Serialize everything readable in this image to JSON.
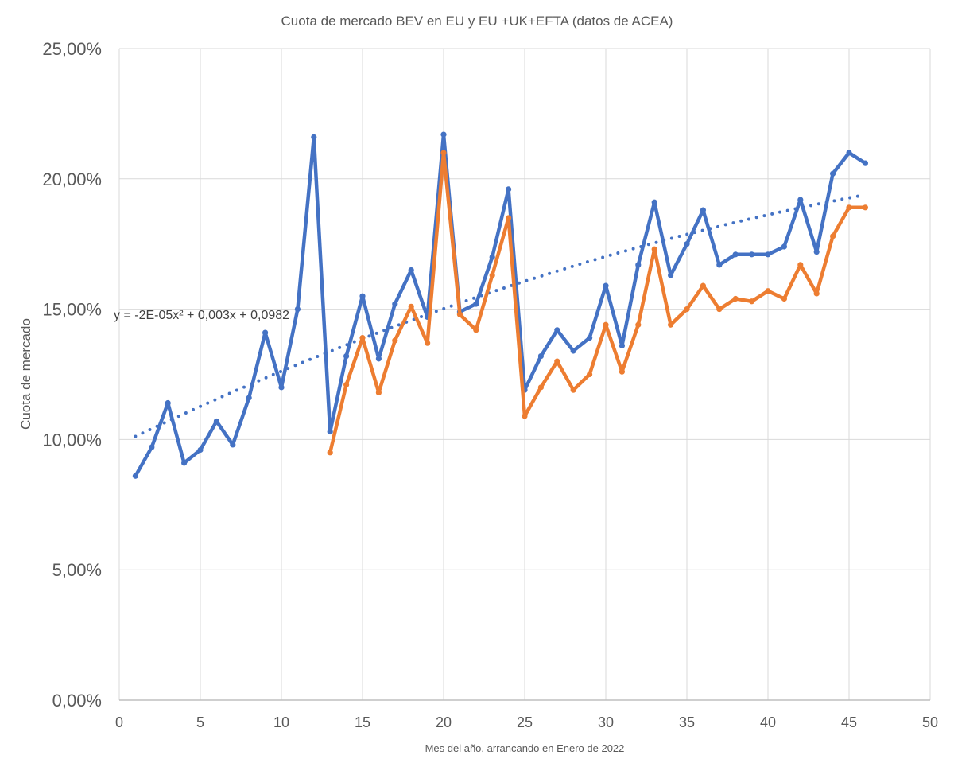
{
  "chart_data": {
    "type": "line",
    "title": "Cuota de mercado BEV en EU y EU +UK+EFTA (datos de ACEA)",
    "xlabel": "Mes del año, arrancando en Enero de 2022",
    "ylabel": "Cuota de mercado",
    "xlim": [
      0,
      50
    ],
    "ylim": [
      0,
      0.25
    ],
    "x_ticks": [
      0,
      5,
      10,
      15,
      20,
      25,
      30,
      35,
      40,
      45,
      50
    ],
    "x_tick_labels": [
      "0",
      "5",
      "10",
      "15",
      "20",
      "25",
      "30",
      "35",
      "40",
      "45",
      "50"
    ],
    "y_ticks": [
      0,
      0.05,
      0.1,
      0.15,
      0.2,
      0.25
    ],
    "y_tick_labels": [
      "0,00%",
      "5,00%",
      "10,00%",
      "15,00%",
      "20,00%",
      "25,00%"
    ],
    "grid": true,
    "series": [
      {
        "color": "#4472C4",
        "x": [
          1,
          2,
          3,
          4,
          5,
          6,
          7,
          8,
          9,
          10,
          11,
          12,
          13,
          14,
          15,
          16,
          17,
          18,
          19,
          20,
          21,
          22,
          23,
          24,
          25,
          26,
          27,
          28,
          29,
          30,
          31,
          32,
          33,
          34,
          35,
          36,
          37,
          38,
          39,
          40,
          41,
          42,
          43,
          44,
          45,
          46
        ],
        "values": [
          0.086,
          0.097,
          0.114,
          0.091,
          0.096,
          0.107,
          0.098,
          0.116,
          0.141,
          0.12,
          0.15,
          0.216,
          0.103,
          0.132,
          0.155,
          0.131,
          0.152,
          0.165,
          0.147,
          0.217,
          0.149,
          0.152,
          0.17,
          0.196,
          0.119,
          0.132,
          0.142,
          0.134,
          0.139,
          0.159,
          0.136,
          0.167,
          0.191,
          0.163,
          0.175,
          0.188,
          0.167,
          0.171,
          0.171,
          0.171,
          0.174,
          0.192,
          0.172,
          0.202,
          0.21,
          0.206
        ]
      },
      {
        "color": "#ED7D31",
        "x": [
          13,
          14,
          15,
          16,
          17,
          18,
          19,
          20,
          21,
          22,
          23,
          24,
          25,
          26,
          27,
          28,
          29,
          30,
          31,
          32,
          33,
          34,
          35,
          36,
          37,
          38,
          39,
          40,
          41,
          42,
          43,
          44,
          45,
          46
        ],
        "values": [
          0.095,
          0.121,
          0.139,
          0.118,
          0.138,
          0.151,
          0.137,
          0.21,
          0.148,
          0.142,
          0.163,
          0.185,
          0.109,
          0.12,
          0.13,
          0.119,
          0.125,
          0.144,
          0.126,
          0.144,
          0.173,
          0.144,
          0.15,
          0.159,
          0.15,
          0.154,
          0.153,
          0.157,
          0.154,
          0.167,
          0.156,
          0.178,
          0.189,
          0.189
        ]
      }
    ],
    "trendline": {
      "type": "polynomial-2",
      "color": "#4472C4",
      "style": "dotted",
      "x_range": [
        1,
        46
      ],
      "coefficients": {
        "a": -2e-05,
        "b": 0.003,
        "c": 0.0982
      },
      "equation_label": "y = -2E-05x² + 0,003x + 0,0982"
    }
  }
}
